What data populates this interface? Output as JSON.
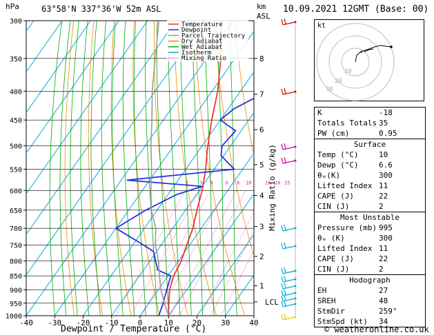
{
  "header": {
    "left_axis_unit": "hPa",
    "location": "63°58'N  337°36'W  52m  ASL",
    "right_axis_unit_km": "km",
    "right_axis_unit_asl": "ASL",
    "datetime": "10.09.2021  12GMT  (Base: 00)"
  },
  "footer": {
    "xlabel": "Dewpoint / Temperature (°C)",
    "copyright": "© weatheronline.co.uk"
  },
  "hodograph": {
    "unit_label": "kt",
    "ring_labels": [
      "10",
      "20",
      "30"
    ]
  },
  "colors": {
    "temperature": "#ee3333",
    "dewpoint": "#2233dd",
    "parcel": "#999999",
    "dry_adiabat": "#ee8800",
    "wet_adiabat": "#00aa00",
    "isotherm": "#00aadd",
    "mixing_ratio": "#dd22aa"
  },
  "legend": [
    {
      "label": "Temperature",
      "color": "#ee3333",
      "dash": "none"
    },
    {
      "label": "Dewpoint",
      "color": "#2233dd",
      "dash": "none"
    },
    {
      "label": "Parcel Trajectory",
      "color": "#999999",
      "dash": "none"
    },
    {
      "label": "Dry Adiabat",
      "color": "#ee8800",
      "dash": "none"
    },
    {
      "label": "Wet Adiabat",
      "color": "#00aa00",
      "dash": "none"
    },
    {
      "label": "Isotherm",
      "color": "#00aadd",
      "dash": "none"
    },
    {
      "label": "Mixing Ratio",
      "color": "#dd22aa",
      "dash": "dot"
    }
  ],
  "indices": [
    {
      "label": "K",
      "value": "-18"
    },
    {
      "label": "Totals Totals",
      "value": "35"
    },
    {
      "label": "PW (cm)",
      "value": "0.95"
    }
  ],
  "surface": {
    "title": "Surface",
    "rows": [
      {
        "label": "Temp (°C)",
        "value": "10"
      },
      {
        "label": "Dewp (°C)",
        "value": "6.6"
      },
      {
        "label": "θₑ(K)",
        "value": "300"
      },
      {
        "label": "Lifted Index",
        "value": "11"
      },
      {
        "label": "CAPE (J)",
        "value": "22"
      },
      {
        "label": "CIN (J)",
        "value": "2"
      }
    ]
  },
  "most_unstable": {
    "title": "Most Unstable",
    "rows": [
      {
        "label": "Pressure (mb)",
        "value": "995"
      },
      {
        "label": "θₑ (K)",
        "value": "300"
      },
      {
        "label": "Lifted Index",
        "value": "11"
      },
      {
        "label": "CAPE (J)",
        "value": "22"
      },
      {
        "label": "CIN (J)",
        "value": "2"
      }
    ]
  },
  "hodograph_table": {
    "title": "Hodograph",
    "rows": [
      {
        "label": "EH",
        "value": "27"
      },
      {
        "label": "SREH",
        "value": "48"
      },
      {
        "label": "StmDir",
        "value": "259°"
      },
      {
        "label": "StmSpd (kt)",
        "value": "34"
      }
    ]
  },
  "chart_data": {
    "type": "line",
    "xlabel": "Dewpoint / Temperature (°C)",
    "ylabel": "hPa",
    "xlim": [
      -40,
      40
    ],
    "ylim": [
      1000,
      300
    ],
    "x_ticks": [
      "-40",
      "-30",
      "-20",
      "-10",
      "0",
      "10",
      "20",
      "30",
      "40"
    ],
    "pressure_levels": [
      300,
      350,
      400,
      450,
      500,
      550,
      600,
      650,
      700,
      750,
      800,
      850,
      900,
      950,
      1000
    ],
    "height_axis_label": "Mixing Ratio (g/kg)",
    "height_ticks": [
      {
        "km": "8",
        "p": 350
      },
      {
        "km": "7",
        "p": 405
      },
      {
        "km": "6",
        "p": 468
      },
      {
        "km": "5",
        "p": 540
      },
      {
        "km": "4",
        "p": 612
      },
      {
        "km": "3",
        "p": 695
      },
      {
        "km": "2",
        "p": 785
      },
      {
        "km": "1",
        "p": 885
      },
      {
        "km": "LCL",
        "p": 945
      }
    ],
    "mixing_ratio_labels": [
      "2",
      "3",
      "4",
      "6",
      "8",
      "10",
      "16",
      "20",
      "25"
    ],
    "mixing_ratio_label_p": 590,
    "series": [
      {
        "name": "Temperature",
        "points": [
          [
            1000,
            10
          ],
          [
            950,
            7
          ],
          [
            900,
            4
          ],
          [
            850,
            2
          ],
          [
            800,
            1
          ],
          [
            750,
            -1
          ],
          [
            700,
            -3
          ],
          [
            650,
            -6
          ],
          [
            600,
            -9
          ],
          [
            550,
            -13
          ],
          [
            520,
            -16
          ],
          [
            500,
            -18
          ],
          [
            450,
            -23
          ],
          [
            400,
            -28
          ],
          [
            350,
            -35
          ],
          [
            300,
            -44
          ]
        ]
      },
      {
        "name": "Dewpoint",
        "points": [
          [
            1000,
            6.6
          ],
          [
            950,
            5
          ],
          [
            900,
            3
          ],
          [
            850,
            1
          ],
          [
            830,
            -5
          ],
          [
            800,
            -8
          ],
          [
            770,
            -11
          ],
          [
            750,
            -16
          ],
          [
            700,
            -30
          ],
          [
            650,
            -24
          ],
          [
            610,
            -17
          ],
          [
            590,
            -10
          ],
          [
            575,
            -38
          ],
          [
            560,
            -17
          ],
          [
            550,
            -3
          ],
          [
            520,
            -11
          ],
          [
            500,
            -13
          ],
          [
            470,
            -12
          ],
          [
            450,
            -20
          ],
          [
            430,
            -18
          ],
          [
            410,
            -13
          ],
          [
            400,
            -9
          ],
          [
            370,
            -12
          ],
          [
            350,
            -18
          ],
          [
            320,
            -20
          ],
          [
            300,
            -25
          ]
        ]
      },
      {
        "name": "Parcel Trajectory",
        "points": [
          [
            1000,
            10
          ],
          [
            945,
            5
          ],
          [
            900,
            1
          ],
          [
            850,
            -3
          ],
          [
            800,
            -7
          ],
          [
            750,
            -12
          ],
          [
            700,
            -16
          ],
          [
            650,
            -22
          ],
          [
            600,
            -27
          ],
          [
            550,
            -32
          ],
          [
            500,
            -38
          ],
          [
            450,
            -44
          ],
          [
            400,
            -51
          ],
          [
            350,
            -58
          ],
          [
            300,
            -66
          ]
        ]
      }
    ]
  }
}
